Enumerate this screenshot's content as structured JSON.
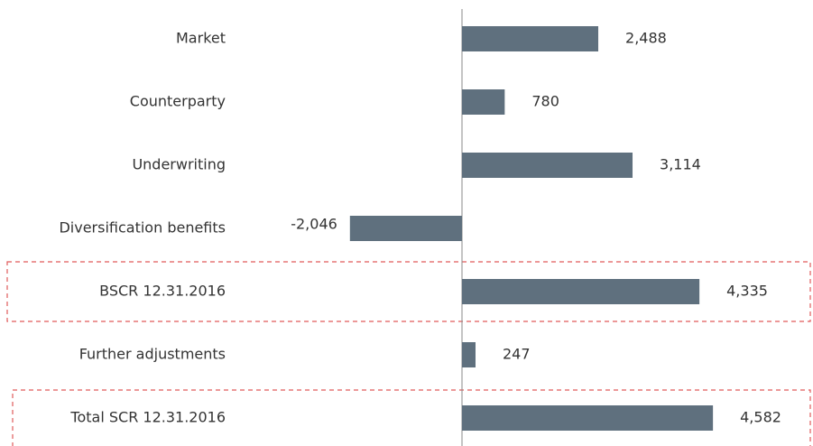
{
  "chart_data": {
    "type": "bar",
    "orientation": "horizontal",
    "categories": [
      "Market",
      "Counterparty",
      "Underwriting",
      "Diversification benefits",
      "BSCR 12.31.2016",
      "Further adjustments",
      "Total SCR 12.31.2016"
    ],
    "values": [
      2488,
      780,
      3114,
      -2046,
      4335,
      247,
      4582
    ],
    "value_labels": [
      "2,488",
      "780",
      "3,114",
      "-2,046",
      "4,335",
      "247",
      "4,582"
    ],
    "color": "#5f707e"
  }
}
